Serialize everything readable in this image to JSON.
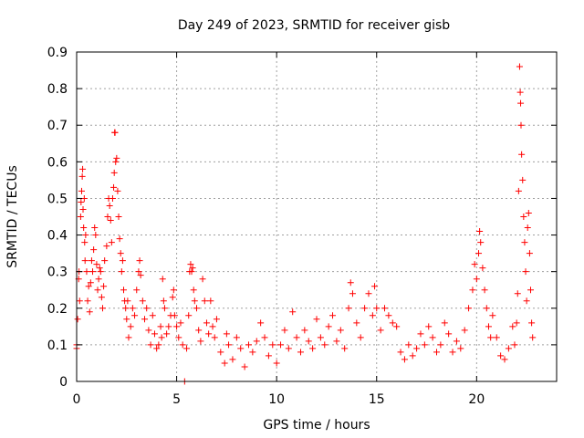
{
  "chart_data": {
    "type": "scatter",
    "title": "Day 249 of 2023, SRMTID for receiver gisb",
    "xlabel": "GPS time / hours",
    "ylabel": "SRMTID / TECUs",
    "xlim": [
      0,
      24
    ],
    "ylim": [
      0,
      0.9
    ],
    "xticks": [
      0,
      5,
      10,
      15,
      20
    ],
    "xtick_labels": [
      "0",
      "5",
      "10",
      "15",
      "20"
    ],
    "yticks": [
      0,
      0.1,
      0.2,
      0.3,
      0.4,
      0.5,
      0.6,
      0.7,
      0.8,
      0.9
    ],
    "ytick_labels": [
      "0",
      "0.1",
      "0.2",
      "0.3",
      "0.4",
      "0.5",
      "0.6",
      "0.7",
      "0.8",
      "0.9"
    ],
    "grid": true,
    "marker": "plus",
    "series": [
      {
        "name": "SRMTID",
        "color": "#ff0000",
        "points": [
          [
            0.0,
            0.1
          ],
          [
            0.0,
            0.09
          ],
          [
            0.05,
            0.17
          ],
          [
            0.1,
            0.28
          ],
          [
            0.12,
            0.3
          ],
          [
            0.15,
            0.22
          ],
          [
            0.2,
            0.45
          ],
          [
            0.22,
            0.49
          ],
          [
            0.25,
            0.52
          ],
          [
            0.28,
            0.56
          ],
          [
            0.3,
            0.58
          ],
          [
            0.32,
            0.47
          ],
          [
            0.35,
            0.42
          ],
          [
            0.38,
            0.5
          ],
          [
            0.4,
            0.38
          ],
          [
            0.42,
            0.33
          ],
          [
            0.45,
            0.4
          ],
          [
            0.5,
            0.3
          ],
          [
            0.55,
            0.22
          ],
          [
            0.6,
            0.26
          ],
          [
            0.65,
            0.19
          ],
          [
            0.7,
            0.27
          ],
          [
            0.75,
            0.33
          ],
          [
            0.8,
            0.3
          ],
          [
            0.85,
            0.36
          ],
          [
            0.9,
            0.42
          ],
          [
            0.95,
            0.4
          ],
          [
            1.0,
            0.32
          ],
          [
            1.05,
            0.25
          ],
          [
            1.1,
            0.28
          ],
          [
            1.15,
            0.31
          ],
          [
            1.2,
            0.3
          ],
          [
            1.25,
            0.23
          ],
          [
            1.3,
            0.2
          ],
          [
            1.35,
            0.26
          ],
          [
            1.4,
            0.33
          ],
          [
            1.5,
            0.37
          ],
          [
            1.55,
            0.45
          ],
          [
            1.6,
            0.5
          ],
          [
            1.65,
            0.48
          ],
          [
            1.7,
            0.44
          ],
          [
            1.75,
            0.38
          ],
          [
            1.8,
            0.5
          ],
          [
            1.85,
            0.53
          ],
          [
            1.88,
            0.57
          ],
          [
            1.9,
            0.68
          ],
          [
            1.92,
            0.68
          ],
          [
            1.95,
            0.6
          ],
          [
            2.0,
            0.61
          ],
          [
            2.05,
            0.52
          ],
          [
            2.1,
            0.45
          ],
          [
            2.15,
            0.39
          ],
          [
            2.2,
            0.35
          ],
          [
            2.25,
            0.3
          ],
          [
            2.3,
            0.33
          ],
          [
            2.35,
            0.25
          ],
          [
            2.4,
            0.22
          ],
          [
            2.45,
            0.2
          ],
          [
            2.5,
            0.17
          ],
          [
            2.55,
            0.22
          ],
          [
            2.6,
            0.12
          ],
          [
            2.7,
            0.15
          ],
          [
            2.8,
            0.2
          ],
          [
            2.9,
            0.18
          ],
          [
            3.0,
            0.25
          ],
          [
            3.1,
            0.3
          ],
          [
            3.15,
            0.33
          ],
          [
            3.2,
            0.29
          ],
          [
            3.3,
            0.22
          ],
          [
            3.4,
            0.17
          ],
          [
            3.5,
            0.2
          ],
          [
            3.6,
            0.14
          ],
          [
            3.7,
            0.1
          ],
          [
            3.8,
            0.18
          ],
          [
            3.9,
            0.13
          ],
          [
            4.0,
            0.09
          ],
          [
            4.1,
            0.1
          ],
          [
            4.2,
            0.15
          ],
          [
            4.25,
            0.12
          ],
          [
            4.3,
            0.28
          ],
          [
            4.35,
            0.22
          ],
          [
            4.4,
            0.2
          ],
          [
            4.5,
            0.13
          ],
          [
            4.6,
            0.15
          ],
          [
            4.7,
            0.18
          ],
          [
            4.8,
            0.23
          ],
          [
            4.85,
            0.25
          ],
          [
            4.9,
            0.18
          ],
          [
            5.0,
            0.15
          ],
          [
            5.1,
            0.12
          ],
          [
            5.2,
            0.16
          ],
          [
            5.3,
            0.1
          ],
          [
            5.4,
            0.0
          ],
          [
            5.5,
            0.09
          ],
          [
            5.6,
            0.18
          ],
          [
            5.65,
            0.3
          ],
          [
            5.7,
            0.32
          ],
          [
            5.75,
            0.3
          ],
          [
            5.8,
            0.31
          ],
          [
            5.85,
            0.25
          ],
          [
            5.9,
            0.22
          ],
          [
            6.0,
            0.2
          ],
          [
            6.1,
            0.14
          ],
          [
            6.2,
            0.11
          ],
          [
            6.3,
            0.28
          ],
          [
            6.4,
            0.22
          ],
          [
            6.5,
            0.16
          ],
          [
            6.6,
            0.13
          ],
          [
            6.7,
            0.22
          ],
          [
            6.8,
            0.15
          ],
          [
            6.9,
            0.12
          ],
          [
            7.0,
            0.17
          ],
          [
            7.2,
            0.08
          ],
          [
            7.4,
            0.05
          ],
          [
            7.5,
            0.13
          ],
          [
            7.6,
            0.1
          ],
          [
            7.8,
            0.06
          ],
          [
            8.0,
            0.12
          ],
          [
            8.2,
            0.09
          ],
          [
            8.4,
            0.04
          ],
          [
            8.6,
            0.1
          ],
          [
            8.8,
            0.08
          ],
          [
            9.0,
            0.11
          ],
          [
            9.2,
            0.16
          ],
          [
            9.4,
            0.12
          ],
          [
            9.6,
            0.07
          ],
          [
            9.8,
            0.1
          ],
          [
            10.0,
            0.05
          ],
          [
            10.2,
            0.1
          ],
          [
            10.4,
            0.14
          ],
          [
            10.6,
            0.09
          ],
          [
            10.8,
            0.19
          ],
          [
            11.0,
            0.12
          ],
          [
            11.2,
            0.08
          ],
          [
            11.4,
            0.14
          ],
          [
            11.6,
            0.11
          ],
          [
            11.8,
            0.09
          ],
          [
            12.0,
            0.17
          ],
          [
            12.2,
            0.12
          ],
          [
            12.4,
            0.1
          ],
          [
            12.6,
            0.15
          ],
          [
            12.8,
            0.18
          ],
          [
            13.0,
            0.11
          ],
          [
            13.2,
            0.14
          ],
          [
            13.4,
            0.09
          ],
          [
            13.6,
            0.2
          ],
          [
            13.7,
            0.27
          ],
          [
            13.8,
            0.24
          ],
          [
            14.0,
            0.16
          ],
          [
            14.2,
            0.12
          ],
          [
            14.4,
            0.2
          ],
          [
            14.6,
            0.24
          ],
          [
            14.8,
            0.18
          ],
          [
            14.9,
            0.26
          ],
          [
            15.0,
            0.2
          ],
          [
            15.2,
            0.14
          ],
          [
            15.4,
            0.2
          ],
          [
            15.6,
            0.18
          ],
          [
            15.8,
            0.16
          ],
          [
            16.0,
            0.15
          ],
          [
            16.2,
            0.08
          ],
          [
            16.4,
            0.06
          ],
          [
            16.6,
            0.1
          ],
          [
            16.8,
            0.07
          ],
          [
            17.0,
            0.09
          ],
          [
            17.2,
            0.13
          ],
          [
            17.4,
            0.1
          ],
          [
            17.6,
            0.15
          ],
          [
            17.8,
            0.12
          ],
          [
            18.0,
            0.08
          ],
          [
            18.2,
            0.1
          ],
          [
            18.4,
            0.16
          ],
          [
            18.6,
            0.13
          ],
          [
            18.8,
            0.08
          ],
          [
            19.0,
            0.11
          ],
          [
            19.2,
            0.09
          ],
          [
            19.4,
            0.14
          ],
          [
            19.6,
            0.2
          ],
          [
            19.8,
            0.25
          ],
          [
            19.9,
            0.32
          ],
          [
            20.0,
            0.28
          ],
          [
            20.1,
            0.35
          ],
          [
            20.15,
            0.41
          ],
          [
            20.2,
            0.38
          ],
          [
            20.3,
            0.31
          ],
          [
            20.4,
            0.25
          ],
          [
            20.5,
            0.2
          ],
          [
            20.6,
            0.15
          ],
          [
            20.7,
            0.12
          ],
          [
            20.8,
            0.18
          ],
          [
            21.0,
            0.12
          ],
          [
            21.2,
            0.07
          ],
          [
            21.4,
            0.06
          ],
          [
            21.6,
            0.09
          ],
          [
            21.8,
            0.15
          ],
          [
            21.9,
            0.1
          ],
          [
            22.0,
            0.16
          ],
          [
            22.05,
            0.24
          ],
          [
            22.1,
            0.52
          ],
          [
            22.15,
            0.86
          ],
          [
            22.18,
            0.79
          ],
          [
            22.2,
            0.76
          ],
          [
            22.22,
            0.7
          ],
          [
            22.25,
            0.62
          ],
          [
            22.3,
            0.55
          ],
          [
            22.35,
            0.45
          ],
          [
            22.4,
            0.38
          ],
          [
            22.45,
            0.3
          ],
          [
            22.5,
            0.22
          ],
          [
            22.55,
            0.42
          ],
          [
            22.6,
            0.46
          ],
          [
            22.65,
            0.35
          ],
          [
            22.7,
            0.25
          ],
          [
            22.75,
            0.16
          ],
          [
            22.8,
            0.12
          ]
        ]
      }
    ]
  }
}
